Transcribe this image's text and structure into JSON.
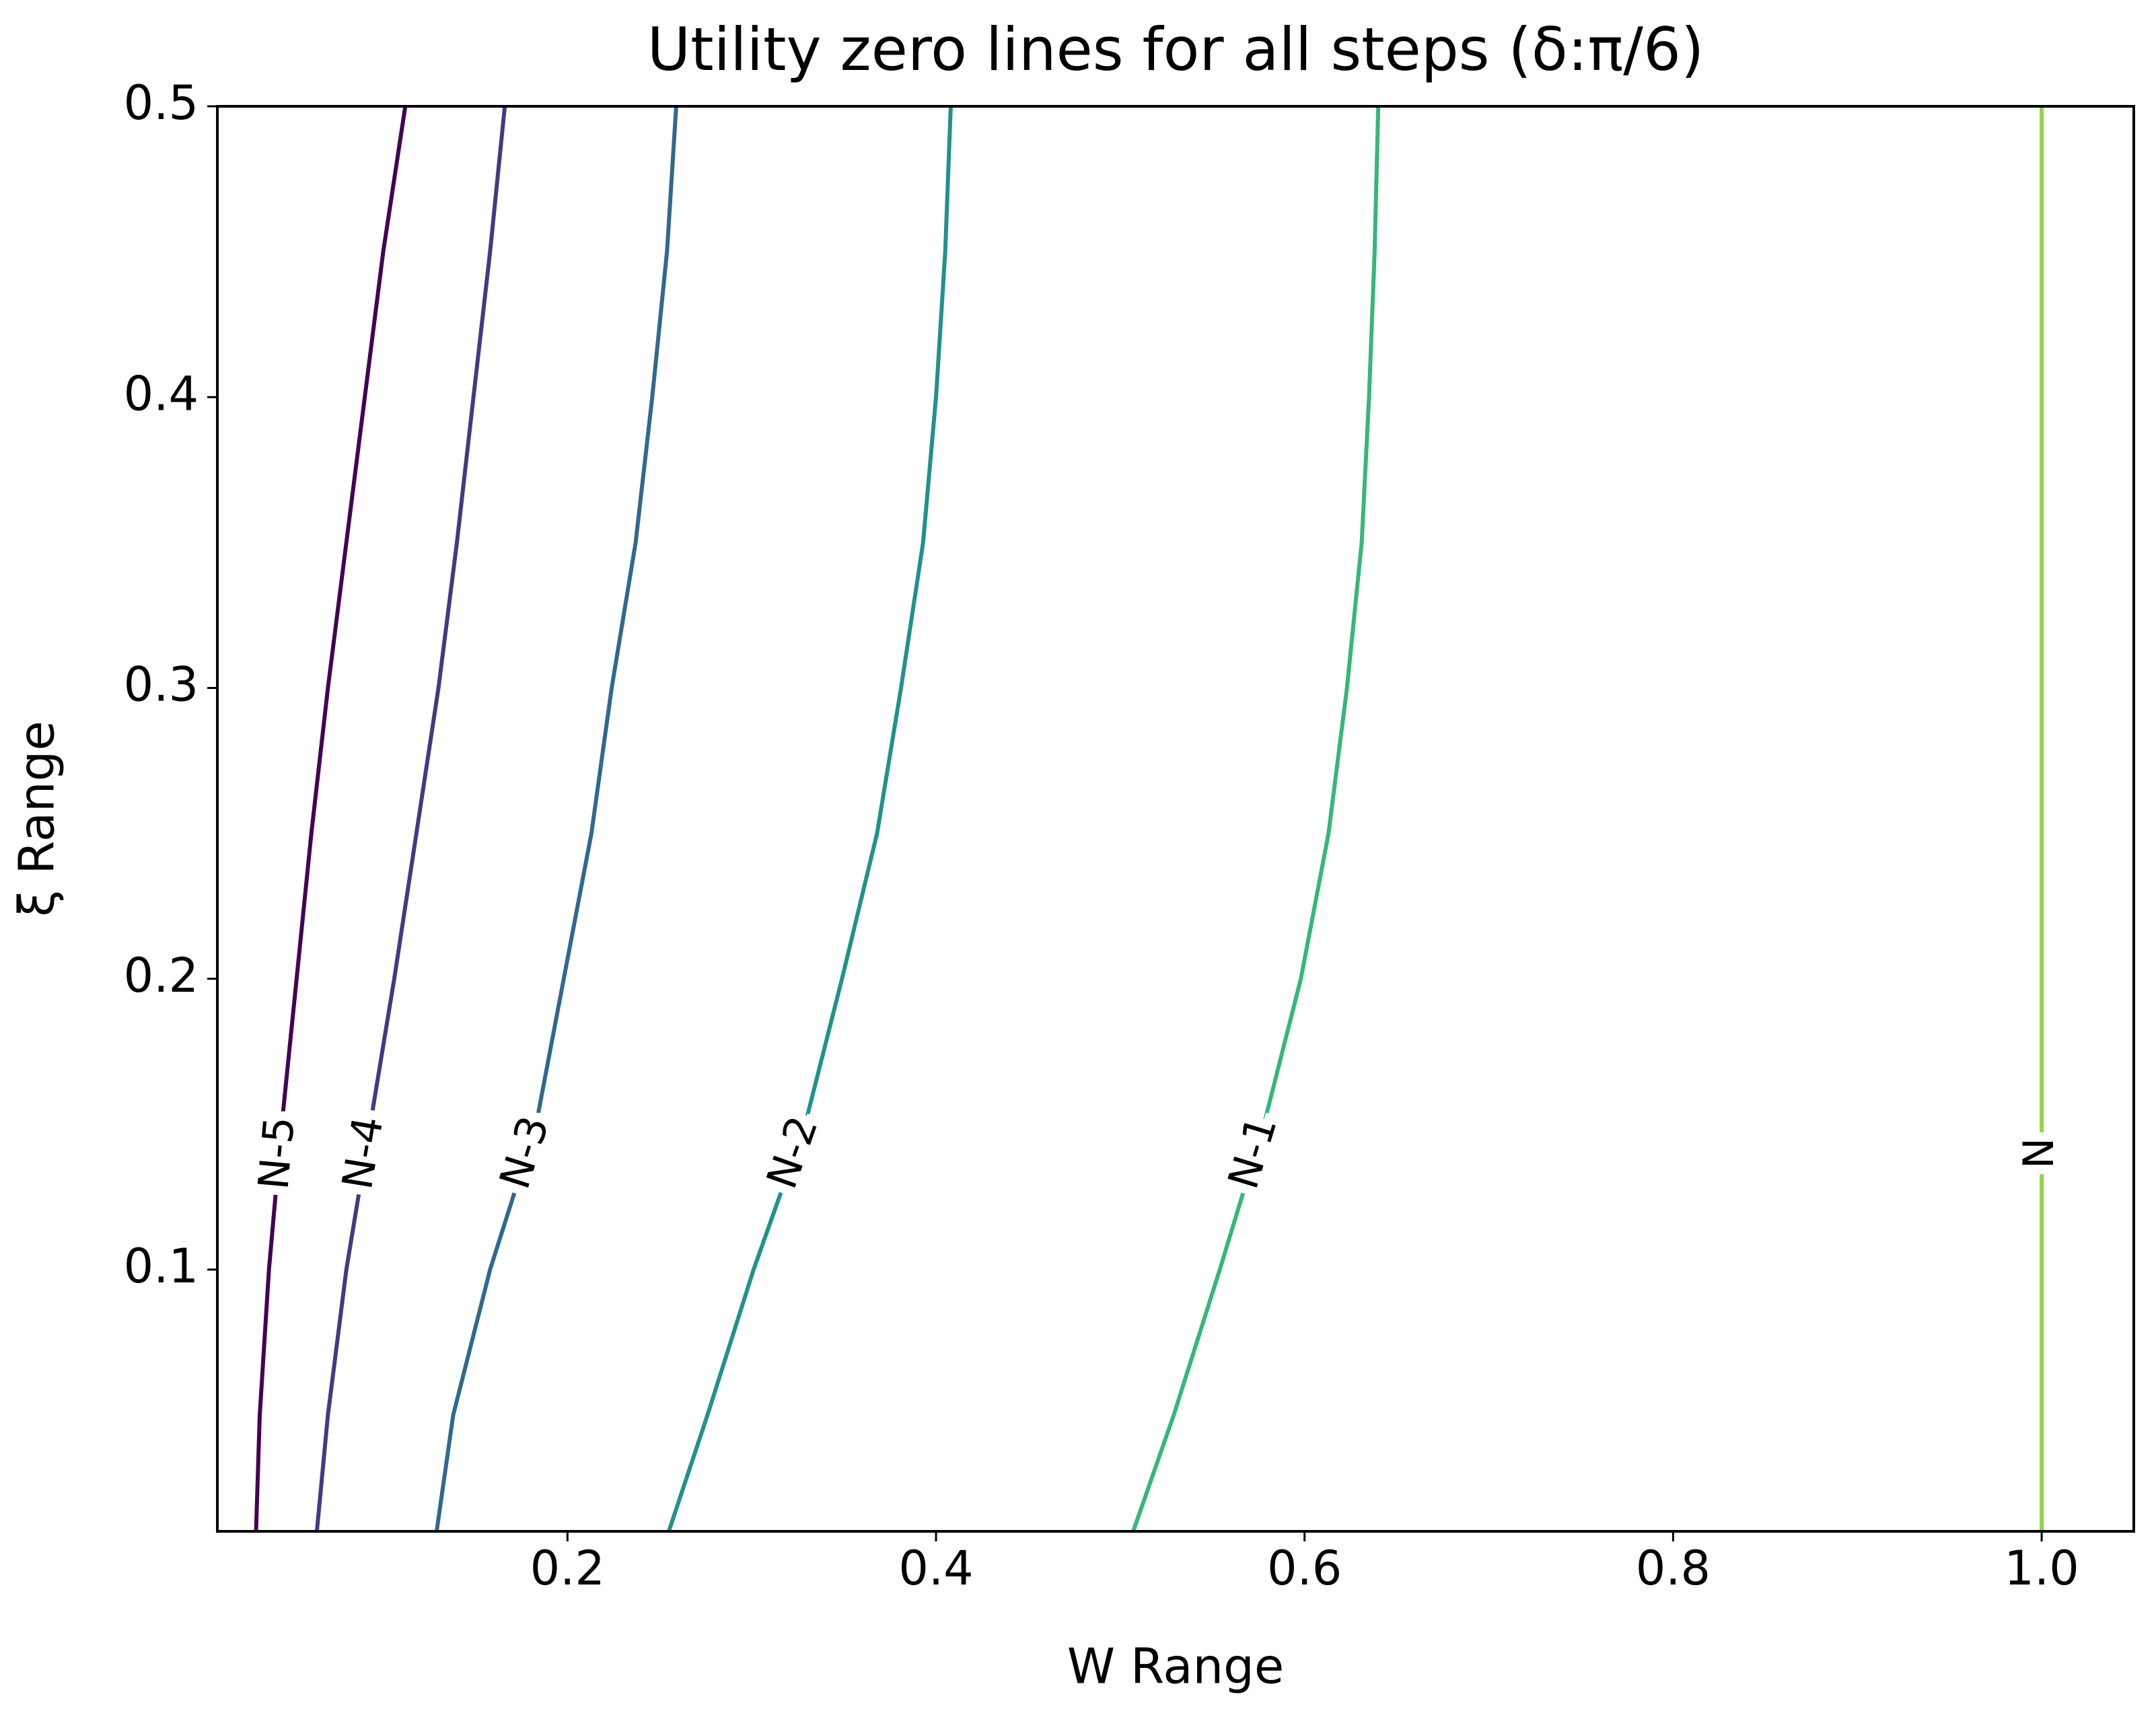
{
  "chart_data": {
    "type": "line",
    "title": "Utility zero lines for all steps (δ:π/6)",
    "x_label": "W Range",
    "y_label": "ξ Range",
    "xlim": [
      0.01,
      1.05
    ],
    "ylim": [
      0.01,
      0.5
    ],
    "xticks": [
      0.2,
      0.4,
      0.6,
      0.8,
      {
        "value": 1,
        "label": "1.0"
      }
    ],
    "yticks": [
      0.1,
      0.2,
      0.3,
      0.4,
      0.5
    ],
    "series": [
      {
        "name": "N-5",
        "color": "#440154",
        "x": [
          0.031,
          0.033,
          0.038,
          0.045,
          0.053,
          0.061,
          0.07,
          0.08,
          0.09,
          0.1,
          0.112
        ],
        "y": [
          0.01,
          0.05,
          0.1,
          0.15,
          0.2,
          0.25,
          0.3,
          0.35,
          0.4,
          0.45,
          0.5
        ]
      },
      {
        "name": "N-4",
        "color": "#443983",
        "x": [
          0.064,
          0.07,
          0.08,
          0.093,
          0.106,
          0.118,
          0.13,
          0.14,
          0.149,
          0.158,
          0.166
        ],
        "y": [
          0.01,
          0.05,
          0.1,
          0.15,
          0.2,
          0.25,
          0.3,
          0.35,
          0.4,
          0.45,
          0.5
        ]
      },
      {
        "name": "N-3",
        "color": "#31688e",
        "x": [
          0.129,
          0.138,
          0.158,
          0.183,
          0.198,
          0.213,
          0.224,
          0.237,
          0.246,
          0.254,
          0.259
        ],
        "y": [
          0.01,
          0.05,
          0.1,
          0.15,
          0.2,
          0.25,
          0.3,
          0.35,
          0.4,
          0.45,
          0.5
        ]
      },
      {
        "name": "N-2",
        "color": "#21918c",
        "x": [
          0.255,
          0.276,
          0.301,
          0.329,
          0.349,
          0.368,
          0.381,
          0.393,
          0.4,
          0.405,
          0.408
        ],
        "y": [
          0.01,
          0.05,
          0.1,
          0.15,
          0.2,
          0.25,
          0.3,
          0.35,
          0.4,
          0.45,
          0.5
        ]
      },
      {
        "name": "N-1",
        "color": "#35b779",
        "x": [
          0.507,
          0.529,
          0.554,
          0.578,
          0.598,
          0.613,
          0.623,
          0.631,
          0.635,
          0.638,
          0.64
        ],
        "y": [
          0.01,
          0.05,
          0.1,
          0.15,
          0.2,
          0.25,
          0.3,
          0.35,
          0.4,
          0.45,
          0.5
        ]
      },
      {
        "name": "N",
        "color": "#8fd744",
        "x": [
          1,
          1
        ],
        "y": [
          0.01,
          0.5
        ]
      }
    ]
  }
}
